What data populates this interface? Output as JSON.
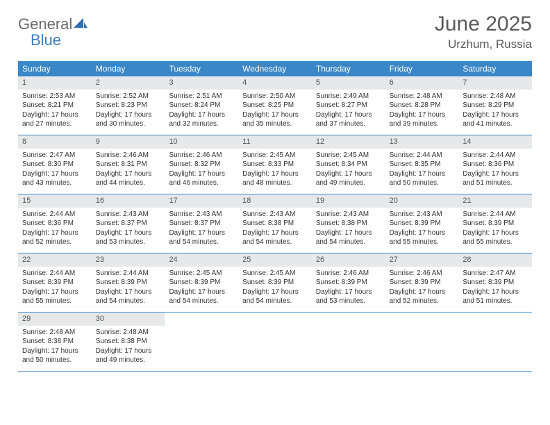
{
  "brand": {
    "word1": "General",
    "word2": "Blue",
    "color_general": "#6a6a6a",
    "color_blue": "#3a7fc4",
    "icon_fill": "#2f6fb0"
  },
  "title": "June 2025",
  "location": "Urzhum, Russia",
  "colors": {
    "header_bg": "#3a87c7",
    "header_text": "#ffffff",
    "daynum_bg": "#e7e8e9",
    "week_border": "#3a87c7",
    "body_text": "#333333",
    "page_bg": "#ffffff"
  },
  "fonts": {
    "title_size": 30,
    "location_size": 17,
    "dow_size": 12,
    "daynum_size": 11,
    "body_size": 10
  },
  "daysOfWeek": [
    "Sunday",
    "Monday",
    "Tuesday",
    "Wednesday",
    "Thursday",
    "Friday",
    "Saturday"
  ],
  "weeks": [
    [
      {
        "n": "1",
        "sr": "Sunrise: 2:53 AM",
        "ss": "Sunset: 8:21 PM",
        "d1": "Daylight: 17 hours",
        "d2": "and 27 minutes."
      },
      {
        "n": "2",
        "sr": "Sunrise: 2:52 AM",
        "ss": "Sunset: 8:23 PM",
        "d1": "Daylight: 17 hours",
        "d2": "and 30 minutes."
      },
      {
        "n": "3",
        "sr": "Sunrise: 2:51 AM",
        "ss": "Sunset: 8:24 PM",
        "d1": "Daylight: 17 hours",
        "d2": "and 32 minutes."
      },
      {
        "n": "4",
        "sr": "Sunrise: 2:50 AM",
        "ss": "Sunset: 8:25 PM",
        "d1": "Daylight: 17 hours",
        "d2": "and 35 minutes."
      },
      {
        "n": "5",
        "sr": "Sunrise: 2:49 AM",
        "ss": "Sunset: 8:27 PM",
        "d1": "Daylight: 17 hours",
        "d2": "and 37 minutes."
      },
      {
        "n": "6",
        "sr": "Sunrise: 2:48 AM",
        "ss": "Sunset: 8:28 PM",
        "d1": "Daylight: 17 hours",
        "d2": "and 39 minutes."
      },
      {
        "n": "7",
        "sr": "Sunrise: 2:48 AM",
        "ss": "Sunset: 8:29 PM",
        "d1": "Daylight: 17 hours",
        "d2": "and 41 minutes."
      }
    ],
    [
      {
        "n": "8",
        "sr": "Sunrise: 2:47 AM",
        "ss": "Sunset: 8:30 PM",
        "d1": "Daylight: 17 hours",
        "d2": "and 43 minutes."
      },
      {
        "n": "9",
        "sr": "Sunrise: 2:46 AM",
        "ss": "Sunset: 8:31 PM",
        "d1": "Daylight: 17 hours",
        "d2": "and 44 minutes."
      },
      {
        "n": "10",
        "sr": "Sunrise: 2:46 AM",
        "ss": "Sunset: 8:32 PM",
        "d1": "Daylight: 17 hours",
        "d2": "and 46 minutes."
      },
      {
        "n": "11",
        "sr": "Sunrise: 2:45 AM",
        "ss": "Sunset: 8:33 PM",
        "d1": "Daylight: 17 hours",
        "d2": "and 48 minutes."
      },
      {
        "n": "12",
        "sr": "Sunrise: 2:45 AM",
        "ss": "Sunset: 8:34 PM",
        "d1": "Daylight: 17 hours",
        "d2": "and 49 minutes."
      },
      {
        "n": "13",
        "sr": "Sunrise: 2:44 AM",
        "ss": "Sunset: 8:35 PM",
        "d1": "Daylight: 17 hours",
        "d2": "and 50 minutes."
      },
      {
        "n": "14",
        "sr": "Sunrise: 2:44 AM",
        "ss": "Sunset: 8:36 PM",
        "d1": "Daylight: 17 hours",
        "d2": "and 51 minutes."
      }
    ],
    [
      {
        "n": "15",
        "sr": "Sunrise: 2:44 AM",
        "ss": "Sunset: 8:36 PM",
        "d1": "Daylight: 17 hours",
        "d2": "and 52 minutes."
      },
      {
        "n": "16",
        "sr": "Sunrise: 2:43 AM",
        "ss": "Sunset: 8:37 PM",
        "d1": "Daylight: 17 hours",
        "d2": "and 53 minutes."
      },
      {
        "n": "17",
        "sr": "Sunrise: 2:43 AM",
        "ss": "Sunset: 8:37 PM",
        "d1": "Daylight: 17 hours",
        "d2": "and 54 minutes."
      },
      {
        "n": "18",
        "sr": "Sunrise: 2:43 AM",
        "ss": "Sunset: 8:38 PM",
        "d1": "Daylight: 17 hours",
        "d2": "and 54 minutes."
      },
      {
        "n": "19",
        "sr": "Sunrise: 2:43 AM",
        "ss": "Sunset: 8:38 PM",
        "d1": "Daylight: 17 hours",
        "d2": "and 54 minutes."
      },
      {
        "n": "20",
        "sr": "Sunrise: 2:43 AM",
        "ss": "Sunset: 8:39 PM",
        "d1": "Daylight: 17 hours",
        "d2": "and 55 minutes."
      },
      {
        "n": "21",
        "sr": "Sunrise: 2:44 AM",
        "ss": "Sunset: 8:39 PM",
        "d1": "Daylight: 17 hours",
        "d2": "and 55 minutes."
      }
    ],
    [
      {
        "n": "22",
        "sr": "Sunrise: 2:44 AM",
        "ss": "Sunset: 8:39 PM",
        "d1": "Daylight: 17 hours",
        "d2": "and 55 minutes."
      },
      {
        "n": "23",
        "sr": "Sunrise: 2:44 AM",
        "ss": "Sunset: 8:39 PM",
        "d1": "Daylight: 17 hours",
        "d2": "and 54 minutes."
      },
      {
        "n": "24",
        "sr": "Sunrise: 2:45 AM",
        "ss": "Sunset: 8:39 PM",
        "d1": "Daylight: 17 hours",
        "d2": "and 54 minutes."
      },
      {
        "n": "25",
        "sr": "Sunrise: 2:45 AM",
        "ss": "Sunset: 8:39 PM",
        "d1": "Daylight: 17 hours",
        "d2": "and 54 minutes."
      },
      {
        "n": "26",
        "sr": "Sunrise: 2:46 AM",
        "ss": "Sunset: 8:39 PM",
        "d1": "Daylight: 17 hours",
        "d2": "and 53 minutes."
      },
      {
        "n": "27",
        "sr": "Sunrise: 2:46 AM",
        "ss": "Sunset: 8:39 PM",
        "d1": "Daylight: 17 hours",
        "d2": "and 52 minutes."
      },
      {
        "n": "28",
        "sr": "Sunrise: 2:47 AM",
        "ss": "Sunset: 8:39 PM",
        "d1": "Daylight: 17 hours",
        "d2": "and 51 minutes."
      }
    ],
    [
      {
        "n": "29",
        "sr": "Sunrise: 2:48 AM",
        "ss": "Sunset: 8:38 PM",
        "d1": "Daylight: 17 hours",
        "d2": "and 50 minutes."
      },
      {
        "n": "30",
        "sr": "Sunrise: 2:48 AM",
        "ss": "Sunset: 8:38 PM",
        "d1": "Daylight: 17 hours",
        "d2": "and 49 minutes."
      },
      {
        "empty": true
      },
      {
        "empty": true
      },
      {
        "empty": true
      },
      {
        "empty": true
      },
      {
        "empty": true
      }
    ]
  ]
}
